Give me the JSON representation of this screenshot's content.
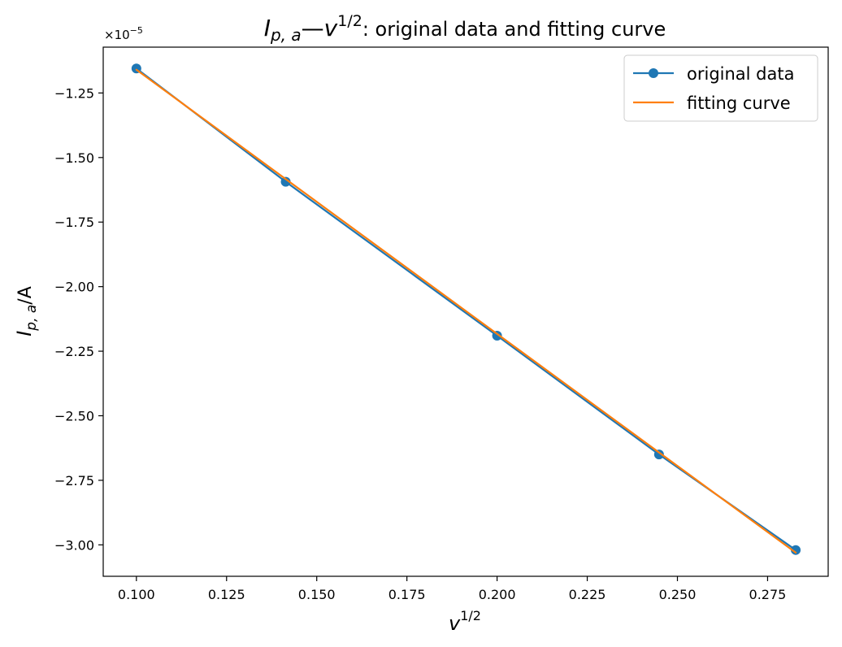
{
  "chart_data": {
    "type": "line",
    "title": {
      "main": "I",
      "main_sub": "p, a",
      "dash": "—",
      "var": "v",
      "var_sup": "1/2",
      "rest": ": original data and fitting curve"
    },
    "xlabel": {
      "main": "v",
      "sup": "1/2"
    },
    "ylabel": {
      "main": "I",
      "sub": "p, a",
      "unit": "/A"
    },
    "y_offset_label": {
      "base": "×10",
      "exp": "−5"
    },
    "y_scale": 1e-05,
    "xlim": [
      0.0908,
      0.2918
    ],
    "ylim": [
      -3.1217,
      -1.0725
    ],
    "x_ticks": [
      0.1,
      0.125,
      0.15,
      0.175,
      0.2,
      0.225,
      0.25,
      0.275
    ],
    "x_tick_labels": [
      "0.100",
      "0.125",
      "0.150",
      "0.175",
      "0.200",
      "0.225",
      "0.250",
      "0.275"
    ],
    "y_ticks": [
      -1.25,
      -1.5,
      -1.75,
      -2.0,
      -2.25,
      -2.5,
      -2.75,
      -3.0
    ],
    "y_tick_labels": [
      "−1.25",
      "−1.50",
      "−1.75",
      "−2.00",
      "−2.25",
      "−2.50",
      "−2.75",
      "−3.00"
    ],
    "grid": false,
    "legend_position": "top-right",
    "series": [
      {
        "name": "original data",
        "color": "#1f77b4",
        "marker": "circle",
        "x": [
          0.1,
          0.1414,
          0.2,
          0.2449,
          0.2828
        ],
        "y": [
          -1.155,
          -1.594,
          -2.19,
          -2.65,
          -3.02
        ]
      },
      {
        "name": "fitting curve",
        "color": "#ff7f0e",
        "marker": "none",
        "x": [
          0.1,
          0.2828
        ],
        "y": [
          -1.16,
          -3.03
        ]
      }
    ]
  }
}
